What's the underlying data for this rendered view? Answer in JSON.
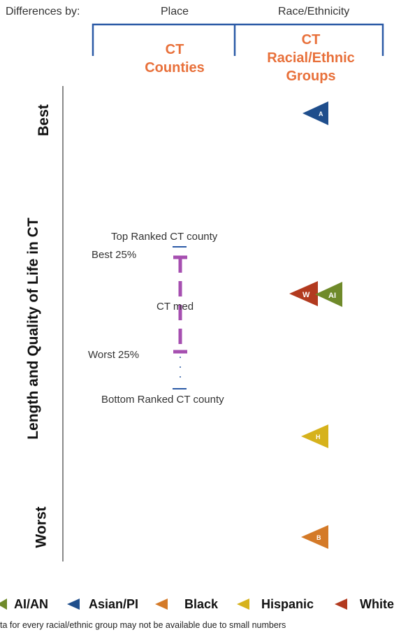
{
  "header": {
    "differences_by": "Differences by:",
    "col1_title": "Place",
    "col2_title": "Race/Ethnicity",
    "col1_label": [
      "CT",
      "Counties"
    ],
    "col2_label": [
      "CT",
      "Racial/Ethnic",
      "Groups"
    ]
  },
  "y_axis": {
    "title": "Length and Quality of Life in CT",
    "top": "Best",
    "bottom": "Worst"
  },
  "county_range": {
    "top_ranked": "Top Ranked CT county",
    "best25": "Best 25%",
    "median": "CT med",
    "worst25": "Worst 25%",
    "bottom_ranked": "Bottom Ranked CT county"
  },
  "groups": [
    {
      "code": "A",
      "name": "Asian/PI",
      "color": "#1f4e8c"
    },
    {
      "code": "W",
      "name": "White",
      "color": "#b23a1f"
    },
    {
      "code": "AI",
      "name": "AI/AN",
      "color": "#6f8a2a"
    },
    {
      "code": "H",
      "name": "Hispanic",
      "color": "#d6b21c"
    },
    {
      "code": "B",
      "name": "Black",
      "color": "#d47a28"
    }
  ],
  "legend": [
    {
      "label": "AI/AN",
      "color": "#6f8a2a"
    },
    {
      "label": "Asian/PI",
      "color": "#1f4e8c"
    },
    {
      "label": "Black",
      "color": "#d47a28"
    },
    {
      "label": "Hispanic",
      "color": "#d6b21c"
    },
    {
      "label": "White",
      "color": "#b23a1f"
    }
  ],
  "colors": {
    "accent": "#e8703a",
    "bracket": "#2b5aa6",
    "county_bar": "#a64fb0"
  },
  "footnote": "ta for every racial/ethnic group may not be available due to small numbers"
}
